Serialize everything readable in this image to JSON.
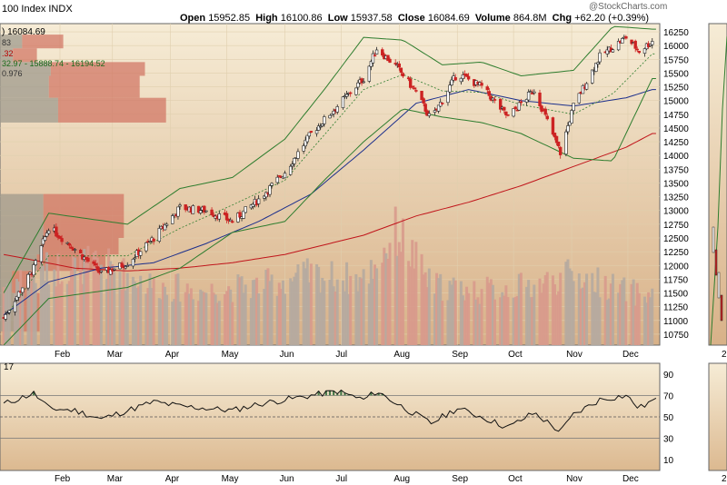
{
  "header": {
    "index_title": "100 Index  INDX",
    "open_label": "Open",
    "open_value": "15952.85",
    "high_label": "High",
    "high_value": "16100.86",
    "low_label": "Low",
    "low_value": "15937.58",
    "close_label": "Close",
    "close_value": "16084.69",
    "volume_label": "Volume",
    "volume_value": "864.8M",
    "chg_label": "Chg",
    "chg_value": "+62.20 (+0.39%)",
    "watermark": "@StockCharts.com"
  },
  "legend": {
    "line1": ") 16084.69",
    "line2": "83",
    "line3": ".32",
    "line4": "32.97 - 15888.74 - 16194.52",
    "line5": "0.976"
  },
  "rsi_label": "17",
  "colors": {
    "background_top": "#f5ead2",
    "background_bottom": "#d9b58a",
    "up_candle": "#ffffff",
    "down_candle": "#cc2222",
    "bollinger": "#2e7d2e",
    "ma_short": "#1c2f8c",
    "ma_long": "#c0141a",
    "volume_up": "#b5aaa0",
    "volume_down": "#d89a8c",
    "volume_profile_up": "#9f9a8c",
    "volume_profile_down": "#d07060"
  },
  "chart_data": {
    "type": "candlestick",
    "price_axis": {
      "ylim": [
        10550,
        16400
      ],
      "ticks": [
        10750,
        11000,
        11250,
        11500,
        11750,
        12000,
        12250,
        12500,
        12750,
        13000,
        13250,
        13500,
        13750,
        14000,
        14250,
        14500,
        14750,
        15000,
        15250,
        15500,
        15750,
        16000,
        16250
      ]
    },
    "months": [
      "Feb",
      "Mar",
      "Apr",
      "May",
      "Jun",
      "Jul",
      "Aug",
      "Sep",
      "Oct",
      "Nov",
      "Dec"
    ],
    "close_trend": [
      {
        "date": "Jan 2",
        "value": 11050
      },
      {
        "date": "Jan 18",
        "value": 11950
      },
      {
        "date": "Jan 26",
        "value": 12700
      },
      {
        "date": "Feb 9",
        "value": 12300
      },
      {
        "date": "Feb 23",
        "value": 11850
      },
      {
        "date": "Mar 9",
        "value": 12050
      },
      {
        "date": "Mar 23",
        "value": 12500
      },
      {
        "date": "Apr 6",
        "value": 13050
      },
      {
        "date": "Apr 20",
        "value": 13000
      },
      {
        "date": "May 4",
        "value": 12800
      },
      {
        "date": "May 18",
        "value": 13200
      },
      {
        "date": "Jun 1",
        "value": 13700
      },
      {
        "date": "Jun 15",
        "value": 14400
      },
      {
        "date": "Jun 29",
        "value": 14900
      },
      {
        "date": "Jul 13",
        "value": 15400
      },
      {
        "date": "Jul 20",
        "value": 15950
      },
      {
        "date": "Jul 31",
        "value": 15600
      },
      {
        "date": "Aug 10",
        "value": 15150
      },
      {
        "date": "Aug 18",
        "value": 14650
      },
      {
        "date": "Sep 1",
        "value": 15500
      },
      {
        "date": "Sep 14",
        "value": 15250
      },
      {
        "date": "Sep 28",
        "value": 14700
      },
      {
        "date": "Oct 12",
        "value": 15200
      },
      {
        "date": "Oct 26",
        "value": 14050
      },
      {
        "date": "Nov 2",
        "value": 14900
      },
      {
        "date": "Nov 16",
        "value": 15800
      },
      {
        "date": "Nov 30",
        "value": 16150
      },
      {
        "date": "Dec 7",
        "value": 15900
      },
      {
        "date": "Dec 14",
        "value": 16085
      }
    ],
    "bollinger_upper": [
      {
        "date": "Jan 2",
        "value": 11500
      },
      {
        "date": "Jan 26",
        "value": 12950
      },
      {
        "date": "Mar 9",
        "value": 12750
      },
      {
        "date": "Apr 6",
        "value": 13400
      },
      {
        "date": "May 4",
        "value": 13600
      },
      {
        "date": "Jun 1",
        "value": 14300
      },
      {
        "date": "Jun 22",
        "value": 15200
      },
      {
        "date": "Jul 13",
        "value": 16150
      },
      {
        "date": "Aug 3",
        "value": 16100
      },
      {
        "date": "Aug 24",
        "value": 15650
      },
      {
        "date": "Sep 14",
        "value": 15700
      },
      {
        "date": "Oct 5",
        "value": 15450
      },
      {
        "date": "Nov 2",
        "value": 15550
      },
      {
        "date": "Nov 23",
        "value": 16350
      },
      {
        "date": "Dec 14",
        "value": 16300
      }
    ],
    "bollinger_lower": [
      {
        "date": "Jan 2",
        "value": 10550
      },
      {
        "date": "Jan 26",
        "value": 11400
      },
      {
        "date": "Mar 9",
        "value": 11600
      },
      {
        "date": "Apr 6",
        "value": 11950
      },
      {
        "date": "May 4",
        "value": 12600
      },
      {
        "date": "Jun 1",
        "value": 12800
      },
      {
        "date": "Jun 22",
        "value": 13550
      },
      {
        "date": "Jul 13",
        "value": 14250
      },
      {
        "date": "Aug 3",
        "value": 14850
      },
      {
        "date": "Aug 24",
        "value": 14700
      },
      {
        "date": "Sep 14",
        "value": 14600
      },
      {
        "date": "Oct 5",
        "value": 14400
      },
      {
        "date": "Nov 2",
        "value": 13950
      },
      {
        "date": "Nov 23",
        "value": 13900
      },
      {
        "date": "Dec 14",
        "value": 15400
      }
    ],
    "sma_short": [
      {
        "date": "Jan 2",
        "value": 11100
      },
      {
        "date": "Jan 26",
        "value": 11700
      },
      {
        "date": "Feb 23",
        "value": 11950
      },
      {
        "date": "Mar 23",
        "value": 12050
      },
      {
        "date": "Apr 20",
        "value": 12400
      },
      {
        "date": "May 18",
        "value": 12800
      },
      {
        "date": "Jun 15",
        "value": 13300
      },
      {
        "date": "Jul 13",
        "value": 14100
      },
      {
        "date": "Aug 10",
        "value": 14950
      },
      {
        "date": "Sep 7",
        "value": 15200
      },
      {
        "date": "Oct 5",
        "value": 15000
      },
      {
        "date": "Nov 2",
        "value": 14900
      },
      {
        "date": "Nov 30",
        "value": 15050
      },
      {
        "date": "Dec 14",
        "value": 15200
      }
    ],
    "sma_long": [
      {
        "date": "Jan 2",
        "value": 12200
      },
      {
        "date": "Feb 9",
        "value": 11950
      },
      {
        "date": "Mar 9",
        "value": 11900
      },
      {
        "date": "Apr 6",
        "value": 11950
      },
      {
        "date": "May 4",
        "value": 12050
      },
      {
        "date": "Jun 1",
        "value": 12200
      },
      {
        "date": "Jul 13",
        "value": 12550
      },
      {
        "date": "Aug 10",
        "value": 12900
      },
      {
        "date": "Sep 7",
        "value": 13150
      },
      {
        "date": "Oct 5",
        "value": 13450
      },
      {
        "date": "Nov 2",
        "value": 13800
      },
      {
        "date": "Nov 30",
        "value": 14150
      },
      {
        "date": "Dec 14",
        "value": 14400
      }
    ],
    "rsi": {
      "ticks": [
        10,
        30,
        50,
        70,
        90
      ],
      "ylim": [
        0,
        100
      ],
      "levels": [
        30,
        50,
        70
      ],
      "values": [
        {
          "date": "Jan 2",
          "value": 62
        },
        {
          "date": "Jan 18",
          "value": 72
        },
        {
          "date": "Jan 26",
          "value": 58
        },
        {
          "date": "Feb 9",
          "value": 56
        },
        {
          "date": "Feb 23",
          "value": 48
        },
        {
          "date": "Mar 9",
          "value": 56
        },
        {
          "date": "Mar 23",
          "value": 64
        },
        {
          "date": "Apr 6",
          "value": 60
        },
        {
          "date": "Apr 20",
          "value": 58
        },
        {
          "date": "May 4",
          "value": 56
        },
        {
          "date": "May 18",
          "value": 62
        },
        {
          "date": "Jun 1",
          "value": 66
        },
        {
          "date": "Jun 15",
          "value": 70
        },
        {
          "date": "Jun 29",
          "value": 74
        },
        {
          "date": "Jul 13",
          "value": 66
        },
        {
          "date": "Jul 20",
          "value": 74
        },
        {
          "date": "Jul 31",
          "value": 62
        },
        {
          "date": "Aug 10",
          "value": 52
        },
        {
          "date": "Aug 18",
          "value": 44
        },
        {
          "date": "Sep 1",
          "value": 58
        },
        {
          "date": "Sep 14",
          "value": 50
        },
        {
          "date": "Sep 28",
          "value": 40
        },
        {
          "date": "Oct 12",
          "value": 54
        },
        {
          "date": "Oct 26",
          "value": 36
        },
        {
          "date": "Nov 2",
          "value": 52
        },
        {
          "date": "Nov 16",
          "value": 66
        },
        {
          "date": "Nov 30",
          "value": 70
        },
        {
          "date": "Dec 7",
          "value": 58
        },
        {
          "date": "Dec 14",
          "value": 65
        }
      ]
    },
    "volume": [
      {
        "date": "Jan 2",
        "value": 1.1
      },
      {
        "date": "Jan 26",
        "value": 1.4
      },
      {
        "date": "Feb 23",
        "value": 1.5
      },
      {
        "date": "Mar 23",
        "value": 1.1
      },
      {
        "date": "Apr 20",
        "value": 1.0
      },
      {
        "date": "May 18",
        "value": 1.1
      },
      {
        "date": "Jun 15",
        "value": 1.3
      },
      {
        "date": "Jul 13",
        "value": 1.2
      },
      {
        "date": "Jul 31",
        "value": 2.1
      },
      {
        "date": "Aug 18",
        "value": 1.1
      },
      {
        "date": "Sep 14",
        "value": 1.0
      },
      {
        "date": "Oct 12",
        "value": 1.1
      },
      {
        "date": "Nov 2",
        "value": 1.3
      },
      {
        "date": "Nov 30",
        "value": 1.0
      },
      {
        "date": "Dec 14",
        "value": 0.9
      }
    ],
    "volume_by_price": [
      {
        "price_low": 15950,
        "price_high": 16200,
        "volume": 0.24
      },
      {
        "price_low": 15700,
        "price_high": 15950,
        "volume": 0.14
      },
      {
        "price_low": 15450,
        "price_high": 15700,
        "volume": 0.55
      },
      {
        "price_low": 15050,
        "price_high": 15450,
        "volume": 0.53
      },
      {
        "price_low": 14600,
        "price_high": 15050,
        "volume": 0.63
      },
      {
        "price_low": 13300,
        "price_high": 14600,
        "volume": 0.0
      },
      {
        "price_low": 12900,
        "price_high": 13300,
        "volume": 0.47
      },
      {
        "price_low": 12500,
        "price_high": 12900,
        "volume": 0.47
      },
      {
        "price_low": 12200,
        "price_high": 12500,
        "volume": 0.45
      },
      {
        "price_low": 11900,
        "price_high": 12200,
        "volume": 0.4
      },
      {
        "price_low": 11500,
        "price_high": 11900,
        "volume": 0.13
      },
      {
        "price_low": 10800,
        "price_high": 11500,
        "volume": 0.15
      }
    ],
    "right_panel_ticks": [
      "2",
      "2"
    ]
  }
}
